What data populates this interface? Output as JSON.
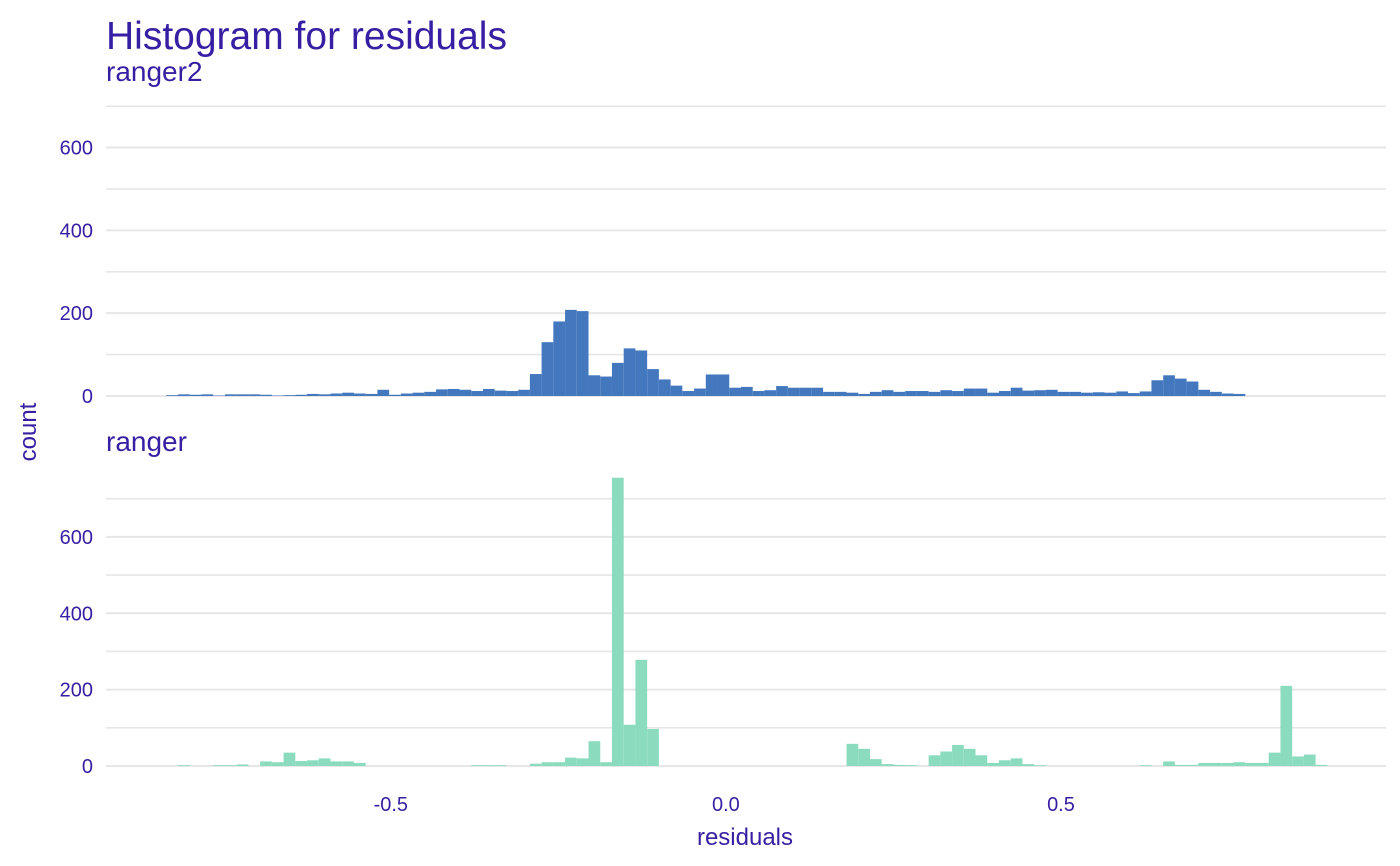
{
  "colors": {
    "text": "#371ea3",
    "grid": "#e6e6e6",
    "ranger2": "#4378bf",
    "ranger": "#8bdcbe"
  },
  "chart_data": {
    "type": "bar",
    "title": "Histogram for residuals",
    "subtitle": "ranger2",
    "xlabel": "residuals",
    "ylabel": "count",
    "grid": true,
    "xlim": [
      -0.925,
      0.985
    ],
    "x_ticks": [
      -0.5,
      0.0,
      0.5
    ],
    "x_tick_labels": [
      "-0.5",
      "0.0",
      "0.5"
    ],
    "bin_start": -0.835,
    "bin_width": 0.0175,
    "panels": [
      {
        "name": "ranger2",
        "color_key": "ranger2",
        "ylim": [
          0,
          710
        ],
        "y_ticks": [
          0,
          200,
          400,
          600
        ],
        "y_tick_labels": [
          "0",
          "200",
          "400",
          "600"
        ],
        "counts": [
          2,
          4,
          3,
          4,
          1,
          4,
          4,
          4,
          3,
          1,
          2,
          3,
          5,
          4,
          6,
          8,
          6,
          5,
          15,
          3,
          6,
          8,
          10,
          16,
          17,
          15,
          12,
          17,
          13,
          12,
          15,
          53,
          130,
          180,
          208,
          205,
          50,
          47,
          80,
          115,
          110,
          65,
          40,
          25,
          12,
          18,
          52,
          52,
          20,
          22,
          12,
          14,
          24,
          20,
          20,
          20,
          10,
          10,
          8,
          5,
          10,
          14,
          10,
          12,
          12,
          10,
          14,
          12,
          18,
          18,
          8,
          12,
          20,
          13,
          14,
          15,
          10,
          10,
          8,
          9,
          8,
          11,
          7,
          11,
          38,
          50,
          42,
          35,
          15,
          10,
          6,
          5
        ]
      },
      {
        "name": "ranger",
        "color_key": "ranger",
        "ylim": [
          0,
          770
        ],
        "y_ticks": [
          0,
          200,
          400,
          600
        ],
        "y_tick_labels": [
          "0",
          "200",
          "400",
          "600"
        ],
        "counts": [
          0,
          2,
          0,
          0,
          2,
          2,
          4,
          0,
          12,
          10,
          35,
          13,
          15,
          20,
          12,
          12,
          8,
          0,
          0,
          0,
          0,
          0,
          0,
          0,
          0,
          0,
          2,
          2,
          2,
          0,
          0,
          6,
          10,
          10,
          22,
          20,
          65,
          10,
          755,
          108,
          278,
          97,
          0,
          0,
          0,
          0,
          0,
          0,
          0,
          0,
          0,
          0,
          0,
          0,
          0,
          0,
          0,
          0,
          58,
          45,
          18,
          5,
          3,
          2,
          0,
          28,
          38,
          55,
          45,
          28,
          8,
          15,
          20,
          5,
          2,
          0,
          0,
          0,
          0,
          0,
          0,
          0,
          0,
          2,
          0,
          12,
          3,
          3,
          8,
          8,
          8,
          10,
          8,
          8,
          35,
          210,
          25,
          30,
          3
        ]
      }
    ]
  }
}
